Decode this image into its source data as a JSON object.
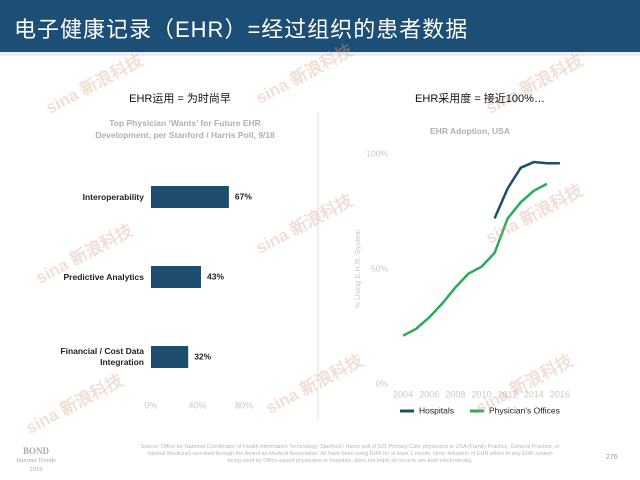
{
  "header": {
    "title": "电子健康记录（EHR）=经过组织的患者数据"
  },
  "watermark": "sina 新浪科技",
  "chart_data": [
    {
      "type": "hbar",
      "heading": "EHR运用 = 为时尚早",
      "title": "Top Physician ‘Wants’ for Future EHR Development, per Stanford / Harris Poll, 9/18",
      "categories": [
        "Interoperability",
        "Predictive Analytics",
        "Financial / Cost Data Integration"
      ],
      "values": [
        67,
        43,
        32
      ],
      "value_labels": [
        "67%",
        "43%",
        "32%"
      ],
      "color": "#1d4e6e",
      "xlim": [
        0,
        80
      ],
      "xticks": [
        {
          "value": 0,
          "label": "0%"
        },
        {
          "value": 40,
          "label": "40%"
        },
        {
          "value": 80,
          "label": "80%"
        }
      ]
    },
    {
      "type": "line",
      "heading": "EHR采用度 = 接近100%…",
      "title": "EHR Adoption, USA",
      "ylabel": "% Using E.H.R. System",
      "x": [
        2004,
        2005,
        2006,
        2007,
        2008,
        2009,
        2010,
        2011,
        2012,
        2013,
        2014,
        2015,
        2016
      ],
      "series": [
        {
          "name": "Hospitals",
          "color": "#1d4e6e",
          "values": [
            null,
            null,
            null,
            null,
            null,
            null,
            null,
            72,
            85,
            94,
            96.5,
            96,
            96
          ]
        },
        {
          "name": "Physician's Offices",
          "color": "#2eaa5c",
          "values": [
            21,
            24,
            29,
            35,
            42,
            48,
            51,
            57,
            72,
            79,
            84,
            87,
            null
          ]
        }
      ],
      "xlim": [
        2003,
        2017
      ],
      "xticks": [
        2004,
        2006,
        2008,
        2010,
        2012,
        2014,
        2016
      ],
      "ylim": [
        0,
        100
      ],
      "yticks": [
        {
          "value": 0,
          "label": "0%"
        },
        {
          "value": 50,
          "label": "50%"
        },
        {
          "value": 100,
          "label": "100%"
        }
      ],
      "legend": "bottom"
    }
  ],
  "footer": {
    "source": "Source: Office for National Coordinator of Health Information Technology; Stanford / Harris poll of 521 Primary Care physicians in USA (Family Practice, General Practice, or Internal Medicine) recruited through the American Medical Association. All have been using EHR for at least 1 month. Note: Adoption of EHR refers to any EHR system being used by Office-based physicians or hospitals, does not imply all records are kept electronically.",
    "page": "276",
    "logo": [
      "BOND",
      "Internet Trends",
      "2019"
    ]
  }
}
